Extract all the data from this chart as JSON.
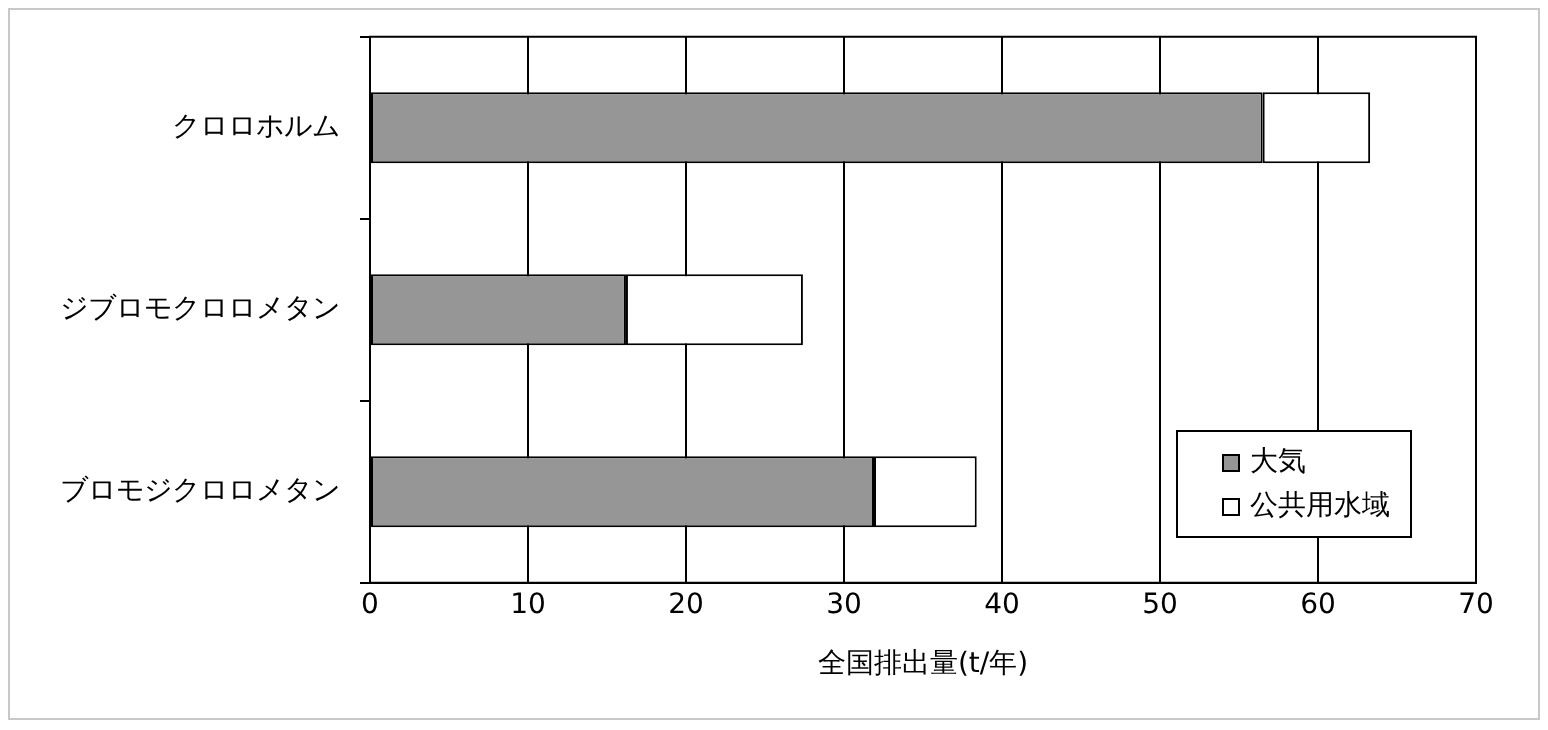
{
  "chart_data": {
    "type": "bar",
    "orientation": "horizontal",
    "stacked": true,
    "xlabel": "全国排出量(t/年)",
    "categories": [
      "クロロホルム",
      "ジブロモクロロメタン",
      "ブロモジクロロメタン"
    ],
    "series": [
      {
        "name": "大気",
        "color": "#969696",
        "values": [
          56.5,
          16.2,
          31.9
        ]
      },
      {
        "name": "公共用水域",
        "color": "#ffffff",
        "values": [
          6.8,
          11.2,
          6.5
        ]
      }
    ],
    "xlim": [
      0,
      70
    ],
    "xticks": [
      0,
      10,
      20,
      30,
      40,
      50,
      60,
      70
    ],
    "grid": "x",
    "legend": "bottom right"
  }
}
